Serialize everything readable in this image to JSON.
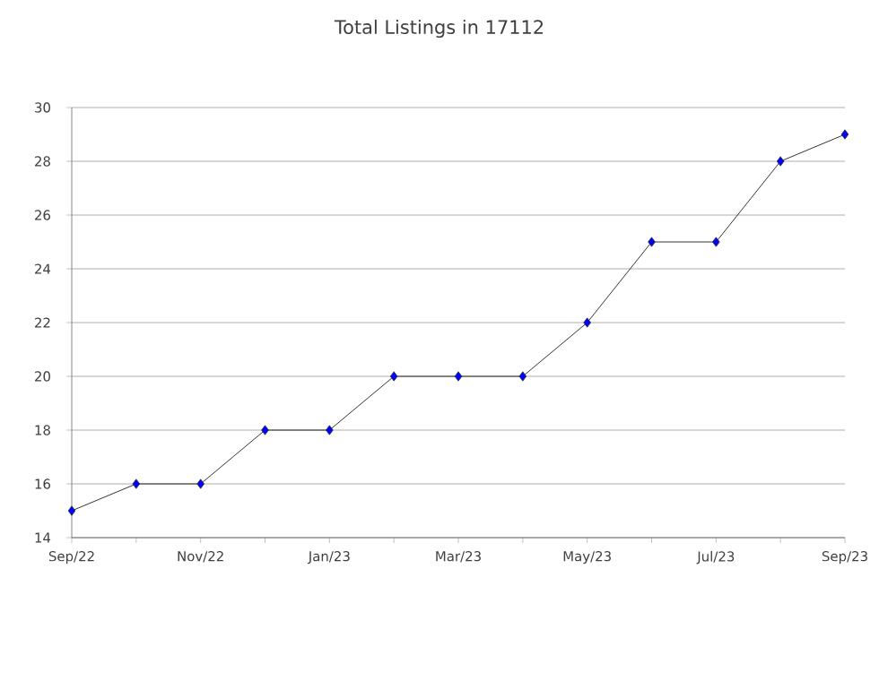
{
  "chart_data": {
    "type": "line",
    "title": "Total Listings in 17112",
    "categories": [
      "Sep/22",
      null,
      "Nov/22",
      null,
      "Jan/23",
      null,
      "Mar/23",
      null,
      "May/23",
      null,
      "Jul/23",
      null,
      "Sep/23"
    ],
    "series": [
      {
        "color": "#0000ff",
        "values": [
          15,
          16,
          16,
          18,
          18,
          20,
          20,
          20,
          22,
          25,
          25,
          28,
          29
        ]
      }
    ],
    "ylim": [
      14,
      30
    ],
    "yticks": [
      14,
      16,
      18,
      20,
      22,
      24,
      26,
      28,
      30
    ],
    "grid": "y",
    "marker": "diamond",
    "line_style": "solid"
  }
}
